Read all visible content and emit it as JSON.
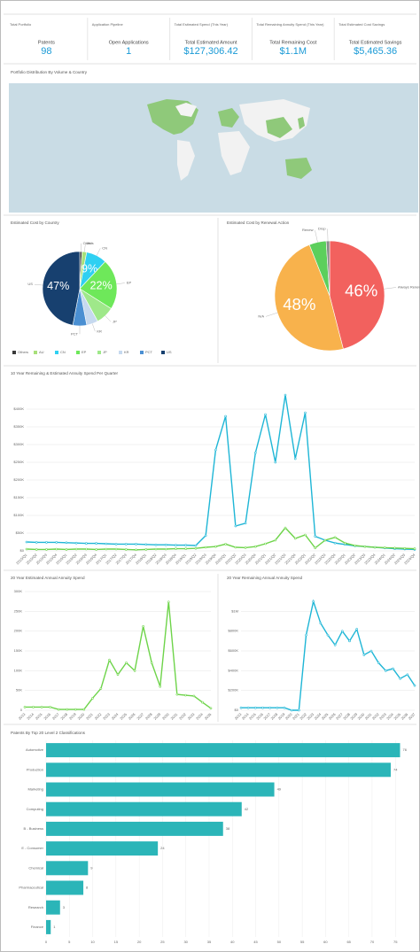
{
  "kpis": [
    {
      "title": "Total Portfolio",
      "label": "Patents",
      "value": 98
    },
    {
      "title": "Application Pipeline",
      "label": "Open Applications",
      "value": 1
    },
    {
      "title": "Total Estimated Spend (This Year)",
      "label": "Total Estimated Amount",
      "value": "$127,306.42"
    },
    {
      "title": "Total Remaining Annuity Spend (This Year)",
      "label": "Total Remaining Cost",
      "value": "$1.1M"
    },
    {
      "title": "Total Estimated Cost Savings",
      "label": "Total Estimated Savings",
      "value": "$5,465.36"
    }
  ],
  "map": {
    "title": "Portfolio Distribution By Volume & Country"
  },
  "chart_data": [
    {
      "type": "pie",
      "title": "Estimated Cost by Country",
      "categories": [
        "Others",
        "AU",
        "CN",
        "EP",
        "JP",
        "KR",
        "PCT",
        "US"
      ],
      "values": [
        1,
        2,
        9,
        22,
        8,
        5,
        6,
        47
      ],
      "value_labels": [
        null,
        null,
        "9%",
        "22%",
        null,
        null,
        null,
        "47%"
      ],
      "colors": [
        "#3a3a3a",
        "#a8e07a",
        "#2fd0f2",
        "#6ee85a",
        "#9fe88a",
        "#c6d9ef",
        "#4a8fd2",
        "#17406f"
      ],
      "legend": "bottom"
    },
    {
      "type": "pie",
      "title": "Estimated Cost by Renewal Action",
      "categories": [
        "Always Renew",
        "N/A",
        "Renew",
        "Drop"
      ],
      "values": [
        46,
        48,
        5,
        1
      ],
      "value_labels": [
        "46%",
        "48%",
        null,
        null
      ],
      "colors": [
        "#f2615e",
        "#f8b24c",
        "#5ccf5c",
        "#8a8a8a"
      ]
    },
    {
      "type": "line",
      "title": "10 Year Remaining & Estimated Annuity Spend Per Quarter",
      "categories": [
        "2015/Q1",
        "2015/Q2",
        "2015/Q3",
        "2015/Q4",
        "2016/Q1",
        "2016/Q2",
        "2016/Q3",
        "2016/Q4",
        "2017/Q1",
        "2017/Q2",
        "2017/Q3",
        "2017/Q4",
        "2018/Q1",
        "2018/Q2",
        "2018/Q3",
        "2018/Q4",
        "2019/Q1",
        "2019/Q2",
        "2019/Q3",
        "2019/Q4",
        "2020/Q1",
        "2020/Q2",
        "2020/Q3",
        "2020/Q4",
        "2021/Q1",
        "2021/Q2",
        "2021/Q3",
        "2021/Q4",
        "2022/Q1",
        "2022/Q2",
        "2022/Q3",
        "2022/Q4",
        "2023/Q1",
        "2023/Q2",
        "2023/Q3",
        "2023/Q4",
        "2024/Q1",
        "2024/Q2",
        "2024/Q3",
        "2024/Q4"
      ],
      "series": [
        {
          "name": "Remaining",
          "color": "#1fb6d6",
          "values": [
            25000,
            24000,
            24000,
            24000,
            23000,
            22000,
            21000,
            21000,
            20000,
            19000,
            19000,
            19000,
            18000,
            17000,
            17000,
            16000,
            16000,
            15000,
            43000,
            285000,
            380000,
            70000,
            78000,
            277000,
            385000,
            250000,
            440000,
            260000,
            390000,
            41000,
            30000,
            22000,
            18000,
            14000,
            12000,
            10000,
            8000,
            6000,
            5000,
            4000
          ]
        },
        {
          "name": "Estimated",
          "color": "#6ed44a",
          "values": [
            5000,
            4000,
            4000,
            5000,
            4000,
            5000,
            5000,
            4000,
            5000,
            5000,
            4000,
            3000,
            4000,
            5000,
            5000,
            6000,
            6000,
            7000,
            10000,
            12000,
            19000,
            10000,
            9000,
            12000,
            20000,
            30000,
            65000,
            35000,
            45000,
            8000,
            30000,
            38000,
            22000,
            15000,
            12000,
            10000,
            9000,
            8000,
            7000,
            6000
          ]
        }
      ],
      "ylim": [
        0,
        450000
      ],
      "yticks": [
        {
          "value": 0,
          "label": "$0"
        },
        {
          "value": 50000,
          "label": "$50K"
        },
        {
          "value": 100000,
          "label": "$100K"
        },
        {
          "value": 150000,
          "label": "$150K"
        },
        {
          "value": 200000,
          "label": "$200K"
        },
        {
          "value": 250000,
          "label": "$250K"
        },
        {
          "value": 300000,
          "label": "$300K"
        },
        {
          "value": 350000,
          "label": "$350K"
        },
        {
          "value": 400000,
          "label": "$400K"
        }
      ],
      "grid": true
    },
    {
      "type": "line",
      "title": "20 Year Estimated Annual Annuity Spend",
      "categories": [
        "2013",
        "2014",
        "2015",
        "2016",
        "2017",
        "2018",
        "2019",
        "2020",
        "2021",
        "2022",
        "2023",
        "2024",
        "2025",
        "2026",
        "2027",
        "2028",
        "2029",
        "2030",
        "2031",
        "2032",
        "2033",
        "2034",
        "2035"
      ],
      "series": [
        {
          "name": "Estimated",
          "color": "#6ed44a",
          "values": [
            8000,
            8000,
            8000,
            8000,
            2000,
            2000,
            2000,
            2000,
            30000,
            55000,
            127000,
            90000,
            120000,
            100000,
            212000,
            120000,
            60000,
            274000,
            40000,
            38000,
            36000,
            20000,
            5000
          ]
        }
      ],
      "ylim": [
        0,
        300000
      ],
      "yticks": [
        {
          "value": 0,
          "label": "0"
        },
        {
          "value": 50000,
          "label": "50K"
        },
        {
          "value": 100000,
          "label": "100K"
        },
        {
          "value": 150000,
          "label": "150K"
        },
        {
          "value": 200000,
          "label": "200K"
        },
        {
          "value": 250000,
          "label": "250K"
        },
        {
          "value": 300000,
          "label": "300K"
        }
      ],
      "grid": true
    },
    {
      "type": "line",
      "title": "20 Year Remaining Annual Annuity Spend",
      "categories": [
        "2013",
        "2014",
        "2015",
        "2016",
        "2017",
        "2018",
        "2019",
        "2020",
        "2021",
        "2022",
        "2023",
        "2024",
        "2025",
        "2026",
        "2027",
        "2028",
        "2029",
        "2030",
        "2031",
        "2032",
        "2033",
        "2034",
        "2035",
        "2036",
        "2037"
      ],
      "series": [
        {
          "name": "Remaining",
          "color": "#1fb6d6",
          "values": [
            25000,
            25000,
            25000,
            25000,
            25000,
            25000,
            25000,
            0,
            0,
            760000,
            1100000,
            880000,
            760000,
            660000,
            800000,
            700000,
            820000,
            560000,
            600000,
            480000,
            400000,
            420000,
            320000,
            360000,
            250000
          ]
        }
      ],
      "ylim": [
        0,
        1200000
      ],
      "yticks": [
        {
          "value": 0,
          "label": "$0"
        },
        {
          "value": 200000,
          "label": "$200K"
        },
        {
          "value": 400000,
          "label": "$400K"
        },
        {
          "value": 600000,
          "label": "$600K"
        },
        {
          "value": 800000,
          "label": "$800K"
        },
        {
          "value": 1000000,
          "label": "$1M"
        }
      ],
      "grid": true
    },
    {
      "type": "hbar",
      "title": "Patents By Top 20 Level 2 Classifications",
      "categories": [
        "Automotive",
        "Production",
        "Marketing",
        "Computing",
        "B - Business",
        "E - Consumer",
        "Chemical",
        "Pharmaceutical",
        "Research",
        "Finance"
      ],
      "values": [
        76,
        74,
        49,
        42,
        38,
        24,
        9,
        8,
        3,
        1
      ],
      "color": "#2bb5b8",
      "xlim": [
        0,
        78
      ],
      "xticks": [
        0,
        5,
        10,
        15,
        20,
        25,
        30,
        35,
        40,
        45,
        50,
        55,
        60,
        65,
        70,
        75
      ],
      "grid": true
    }
  ]
}
